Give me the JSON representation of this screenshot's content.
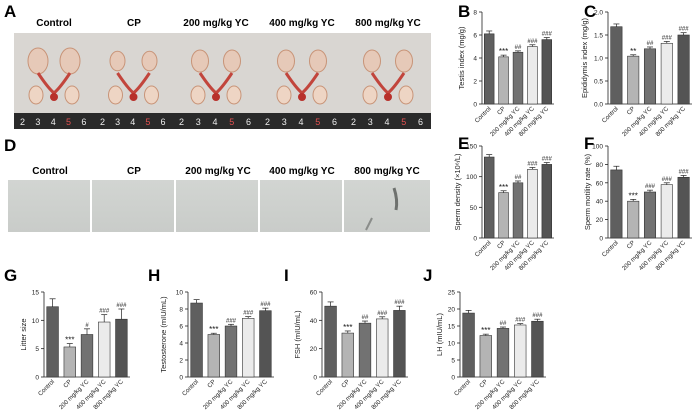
{
  "panel_letters": {
    "A": "A",
    "B": "B",
    "C": "C",
    "D": "D",
    "E": "E",
    "F": "F",
    "G": "G",
    "H": "H",
    "I": "I",
    "J": "J"
  },
  "photo_groups": [
    "Control",
    "CP",
    "200 mg/kg YC",
    "400 mg/kg YC",
    "800 mg/kg YC"
  ],
  "ruler_digits": [
    "2",
    "3",
    "4",
    "5",
    "6"
  ],
  "colors": {
    "control": "#5f5f5f",
    "cp": "#b4b4b4",
    "yc200": "#727272",
    "yc400": "#ebebeb",
    "yc800": "#545454",
    "photo_bg": "#d9d6d2",
    "ruler": "#2a2a2a",
    "sperm_bg": "#c9ccc9"
  },
  "chart_data": [
    {
      "id": "B",
      "type": "bar",
      "categories": [
        "Control",
        "CP",
        "200 mg/kg YC",
        "400 mg/kg YC",
        "800 mg/kg YC"
      ],
      "values": [
        6.1,
        4.1,
        4.5,
        5.0,
        5.6
      ],
      "errors": [
        0.25,
        0.15,
        0.12,
        0.15,
        0.18
      ],
      "annotations": [
        "",
        "***",
        "##",
        "###",
        "###"
      ],
      "ylabel": "Testis index (mg/g)",
      "ylim": [
        0,
        8
      ],
      "yticks": [
        0,
        2,
        4,
        6,
        8
      ]
    },
    {
      "id": "C",
      "type": "bar",
      "categories": [
        "Control",
        "CP",
        "200 mg/kg YC",
        "400 mg/kg YC",
        "800 mg/kg YC"
      ],
      "values": [
        1.68,
        1.04,
        1.2,
        1.32,
        1.5
      ],
      "errors": [
        0.06,
        0.03,
        0.04,
        0.04,
        0.05
      ],
      "annotations": [
        "",
        "**",
        "##",
        "###",
        "###"
      ],
      "ylabel": "Epididymis index (mg/g)",
      "ylim": [
        0,
        2.0
      ],
      "yticks": [
        0,
        0.5,
        1.0,
        1.5,
        2.0
      ]
    },
    {
      "id": "E",
      "type": "bar",
      "categories": [
        "Control",
        "CP",
        "200 mg/kg YC",
        "400 mg/kg YC",
        "800 mg/kg YC"
      ],
      "values": [
        132,
        74,
        90,
        112,
        120
      ],
      "errors": [
        4,
        3,
        3,
        3,
        3
      ],
      "annotations": [
        "",
        "***",
        "##",
        "###",
        "###"
      ],
      "ylabel": "Sperm density (×10⁶/L)",
      "ylim": [
        0,
        150
      ],
      "yticks": [
        0,
        50,
        100,
        150
      ]
    },
    {
      "id": "F",
      "type": "bar",
      "categories": [
        "Control",
        "CP",
        "200 mg/kg YC",
        "400 mg/kg YC",
        "800 mg/kg YC"
      ],
      "values": [
        74,
        40,
        50,
        58,
        66
      ],
      "errors": [
        4,
        2,
        2,
        2,
        2
      ],
      "annotations": [
        "",
        "***",
        "###",
        "###",
        "###"
      ],
      "ylabel": "Sperm motility rate (%)",
      "ylim": [
        0,
        100
      ],
      "yticks": [
        0,
        20,
        40,
        60,
        80,
        100
      ]
    },
    {
      "id": "G",
      "type": "bar",
      "categories": [
        "Control",
        "CP",
        "200 mg/kg YC",
        "400 mg/kg YC",
        "800 mg/kg YC"
      ],
      "values": [
        12.4,
        5.3,
        7.5,
        9.7,
        10.2
      ],
      "errors": [
        1.4,
        0.6,
        1.0,
        1.3,
        1.8
      ],
      "annotations": [
        "",
        "***",
        "#",
        "###",
        "###"
      ],
      "ylabel": "Litter size",
      "ylim": [
        0,
        15
      ],
      "yticks": [
        0,
        5,
        10,
        15
      ]
    },
    {
      "id": "H",
      "type": "bar",
      "categories": [
        "Control",
        "CP",
        "200 mg/kg YC",
        "400 mg/kg YC",
        "800 mg/kg YC"
      ],
      "values": [
        8.7,
        5.0,
        6.0,
        6.9,
        7.8
      ],
      "errors": [
        0.4,
        0.15,
        0.2,
        0.2,
        0.3
      ],
      "annotations": [
        "",
        "***",
        "###",
        "###",
        "###"
      ],
      "ylabel": "Testosterone (mIU/mL)",
      "ylim": [
        0,
        10
      ],
      "yticks": [
        0,
        2,
        4,
        6,
        8,
        10
      ]
    },
    {
      "id": "I",
      "type": "bar",
      "categories": [
        "Control",
        "CP",
        "200 mg/kg YC",
        "400 mg/kg YC",
        "800 mg/kg YC"
      ],
      "values": [
        50,
        31,
        38,
        41,
        47
      ],
      "errors": [
        3,
        1.5,
        1.5,
        1.5,
        3
      ],
      "annotations": [
        "",
        "***",
        "##",
        "###",
        "###"
      ],
      "ylabel": "FSH (mIU/mL)",
      "ylim": [
        0,
        60
      ],
      "yticks": [
        0,
        20,
        40,
        60
      ]
    },
    {
      "id": "J",
      "type": "bar",
      "categories": [
        "Control",
        "CP",
        "200 mg/kg YC",
        "400 mg/kg YC",
        "800 mg/kg YC"
      ],
      "values": [
        18.8,
        12.2,
        14.3,
        15.3,
        16.4
      ],
      "errors": [
        0.8,
        0.4,
        0.4,
        0.4,
        0.6
      ],
      "annotations": [
        "",
        "***",
        "##",
        "###",
        "###"
      ],
      "ylabel": "LH (mIU/mL)",
      "ylim": [
        0,
        25
      ],
      "yticks": [
        0,
        5,
        10,
        15,
        20,
        25
      ]
    }
  ]
}
